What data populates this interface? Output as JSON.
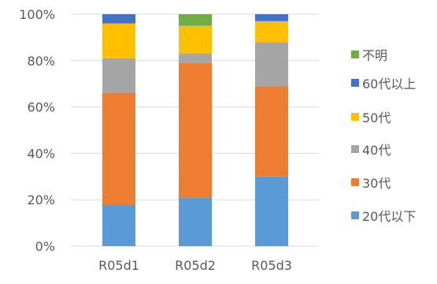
{
  "chart_data": {
    "type": "bar",
    "stacked": true,
    "percent": true,
    "categories": [
      "R05d1",
      "R05d2",
      "R05d3"
    ],
    "ylim": [
      0,
      100
    ],
    "yticks": [
      "0%",
      "20%",
      "40%",
      "60%",
      "80%",
      "100%"
    ],
    "grid": true,
    "legend_position": "right",
    "series": [
      {
        "name": "20代以下",
        "color": "#5b9bd5",
        "values": [
          18,
          21,
          30
        ]
      },
      {
        "name": "30代",
        "color": "#ed7d31",
        "values": [
          48,
          58,
          39
        ]
      },
      {
        "name": "40代",
        "color": "#a5a5a5",
        "values": [
          15,
          4,
          19
        ]
      },
      {
        "name": "50代",
        "color": "#ffc000",
        "values": [
          15,
          12,
          9
        ]
      },
      {
        "name": "60代以上",
        "color": "#4472c4",
        "values": [
          4,
          0,
          3
        ]
      },
      {
        "name": "不明",
        "color": "#70ad47",
        "values": [
          0,
          5,
          0
        ]
      }
    ]
  }
}
